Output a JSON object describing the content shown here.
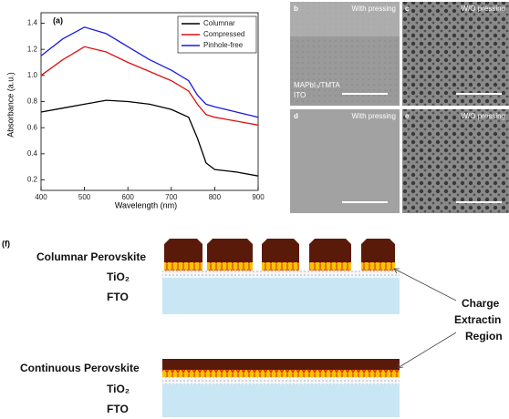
{
  "chart_data": {
    "type": "line",
    "panel_label": "(a)",
    "x_label": "Wavelength (nm)",
    "y_label": "Absorbance (a.u.)",
    "x": [
      400,
      450,
      500,
      550,
      600,
      650,
      700,
      740,
      760,
      780,
      800,
      850,
      900
    ],
    "series": [
      {
        "name": "Columnar",
        "color": "#000000",
        "values": [
          0.72,
          0.75,
          0.78,
          0.81,
          0.8,
          0.78,
          0.74,
          0.68,
          0.52,
          0.33,
          0.28,
          0.26,
          0.23
        ]
      },
      {
        "name": "Compressed",
        "color": "#e01010",
        "values": [
          1.0,
          1.12,
          1.22,
          1.18,
          1.1,
          1.03,
          0.96,
          0.88,
          0.78,
          0.7,
          0.68,
          0.65,
          0.62
        ]
      },
      {
        "name": "Pinhole-free",
        "color": "#1a1ae0",
        "values": [
          1.15,
          1.28,
          1.37,
          1.32,
          1.22,
          1.12,
          1.04,
          0.96,
          0.85,
          0.78,
          0.76,
          0.72,
          0.68
        ]
      }
    ],
    "xlim": [
      400,
      900
    ],
    "xticks": [
      400,
      500,
      600,
      700,
      800,
      900
    ],
    "ylim": [
      0.12,
      1.48
    ],
    "yticks": [
      0.2,
      0.4,
      0.6,
      0.8,
      {
        "value": 1,
        "label": "1.0"
      },
      1.2,
      1.4
    ],
    "legend": "upper right"
  },
  "sem_panels": [
    {
      "letter": "b",
      "caption": "With pressing",
      "inner": [
        "MAPbI₃/TMTA",
        "ITO"
      ]
    },
    {
      "letter": "c",
      "caption": "W/O pressing"
    },
    {
      "letter": "d",
      "caption": "With pressing"
    },
    {
      "letter": "e",
      "caption": "W/O pressing"
    }
  ],
  "diagram": {
    "panel_label": "(f)",
    "top": {
      "perovskite": "Columnar Perovskite",
      "tio2": "TiO₂",
      "fto": "FTO"
    },
    "bottom": {
      "perovskite": "Continuous Perovskite",
      "tio2": "TiO₂",
      "fto": "FTO"
    },
    "callout": [
      "Charge",
      "Extractin",
      "Region"
    ]
  }
}
